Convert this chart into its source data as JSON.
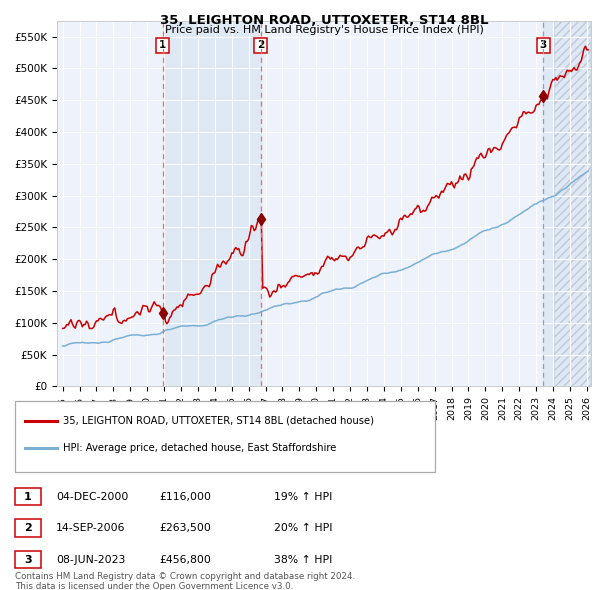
{
  "title": "35, LEIGHTON ROAD, UTTOXETER, ST14 8BL",
  "subtitle": "Price paid vs. HM Land Registry's House Price Index (HPI)",
  "ylim": [
    0,
    575000
  ],
  "yticks": [
    0,
    50000,
    100000,
    150000,
    200000,
    250000,
    300000,
    350000,
    400000,
    450000,
    500000,
    550000
  ],
  "ytick_labels": [
    "£0",
    "£50K",
    "£100K",
    "£150K",
    "£200K",
    "£250K",
    "£300K",
    "£350K",
    "£400K",
    "£450K",
    "£500K",
    "£550K"
  ],
  "sale_dates_str": [
    "2000-12-04",
    "2006-09-14",
    "2023-06-08"
  ],
  "sale_prices": [
    116000,
    263500,
    456800
  ],
  "property_color": "#cc0000",
  "hpi_color": "#7bafd4",
  "shade_color": "#dde8f5",
  "legend_property": "35, LEIGHTON ROAD, UTTOXETER, ST14 8BL (detached house)",
  "legend_hpi": "HPI: Average price, detached house, East Staffordshire",
  "table_rows": [
    [
      "1",
      "04-DEC-2000",
      "£116,000",
      "19% ↑ HPI"
    ],
    [
      "2",
      "14-SEP-2006",
      "£263,500",
      "20% ↑ HPI"
    ],
    [
      "3",
      "08-JUN-2023",
      "£456,800",
      "38% ↑ HPI"
    ]
  ],
  "footnote1": "Contains HM Land Registry data © Crown copyright and database right 2024.",
  "footnote2": "This data is licensed under the Open Government Licence v3.0."
}
